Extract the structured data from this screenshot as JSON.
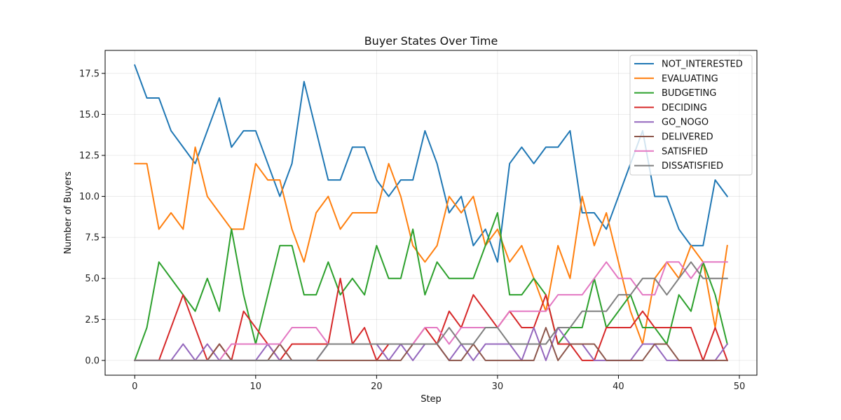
{
  "chart_data": {
    "type": "line",
    "title": "Buyer States Over Time",
    "xlabel": "Step",
    "ylabel": "Number of Buyers",
    "xlim": [
      -2.45,
      51.45
    ],
    "ylim": [
      -0.9,
      18.9
    ],
    "xticks": [
      0,
      10,
      20,
      30,
      40,
      50
    ],
    "yticks": [
      0.0,
      2.5,
      5.0,
      7.5,
      10.0,
      12.5,
      15.0,
      17.5
    ],
    "ytick_labels": [
      "0.0",
      "2.5",
      "5.0",
      "7.5",
      "10.0",
      "12.5",
      "15.0",
      "17.5"
    ],
    "grid": true,
    "legend_position": "top-right",
    "x": [
      0,
      1,
      2,
      3,
      4,
      5,
      6,
      7,
      8,
      9,
      10,
      11,
      12,
      13,
      14,
      15,
      16,
      17,
      18,
      19,
      20,
      21,
      22,
      23,
      24,
      25,
      26,
      27,
      28,
      29,
      30,
      31,
      32,
      33,
      34,
      35,
      36,
      37,
      38,
      39,
      40,
      41,
      42,
      43,
      44,
      45,
      46,
      47,
      48,
      49
    ],
    "series": [
      {
        "name": "NOT_INTERESTED",
        "color": "#1f77b4",
        "values": [
          18,
          16,
          16,
          14,
          13,
          12,
          14,
          16,
          13,
          14,
          14,
          12,
          10,
          12,
          17,
          14,
          11,
          11,
          13,
          13,
          11,
          10,
          11,
          11,
          14,
          12,
          9,
          10,
          7,
          8,
          6,
          12,
          13,
          12,
          13,
          13,
          14,
          9,
          9,
          8,
          10,
          12,
          14,
          10,
          10,
          8,
          7,
          7,
          11,
          10
        ]
      },
      {
        "name": "EVALUATING",
        "color": "#ff7f0e",
        "values": [
          12,
          12,
          8,
          9,
          8,
          13,
          10,
          9,
          8,
          8,
          12,
          11,
          11,
          8,
          6,
          9,
          10,
          8,
          9,
          9,
          9,
          12,
          10,
          7,
          6,
          7,
          10,
          9,
          10,
          7,
          8,
          6,
          7,
          5,
          3,
          7,
          5,
          10,
          7,
          9,
          6,
          3,
          1,
          5,
          6,
          5,
          7,
          6,
          2,
          7
        ]
      },
      {
        "name": "BUDGETING",
        "color": "#2ca02c",
        "values": [
          0,
          2,
          6,
          5,
          4,
          3,
          5,
          3,
          8,
          4,
          1,
          4,
          7,
          7,
          4,
          4,
          6,
          4,
          5,
          4,
          7,
          5,
          5,
          8,
          4,
          6,
          5,
          5,
          5,
          7,
          9,
          4,
          4,
          5,
          4,
          1,
          2,
          2,
          5,
          2,
          3,
          4,
          2,
          2,
          1,
          4,
          3,
          6,
          4,
          1
        ]
      },
      {
        "name": "DECIDING",
        "color": "#d62728",
        "values": [
          0,
          0,
          0,
          2,
          4,
          2,
          0,
          1,
          0,
          3,
          2,
          1,
          0,
          1,
          1,
          1,
          1,
          5,
          1,
          2,
          0,
          1,
          1,
          1,
          2,
          1,
          3,
          2,
          4,
          3,
          2,
          3,
          2,
          2,
          4,
          1,
          1,
          0,
          0,
          2,
          2,
          2,
          3,
          2,
          2,
          2,
          2,
          0,
          2,
          0
        ]
      },
      {
        "name": "GO_NOGO",
        "color": "#9467bd",
        "values": [
          0,
          0,
          0,
          0,
          1,
          0,
          1,
          0,
          0,
          0,
          0,
          1,
          0,
          0,
          0,
          0,
          1,
          1,
          1,
          1,
          1,
          0,
          1,
          0,
          1,
          1,
          0,
          1,
          0,
          1,
          1,
          1,
          0,
          2,
          0,
          2,
          1,
          1,
          0,
          0,
          0,
          0,
          1,
          1,
          0,
          0,
          0,
          0,
          0,
          1
        ]
      },
      {
        "name": "DELIVERED",
        "color": "#8c564b",
        "values": [
          0,
          0,
          0,
          0,
          0,
          0,
          0,
          1,
          0,
          0,
          0,
          0,
          1,
          0,
          0,
          0,
          0,
          0,
          0,
          0,
          0,
          0,
          0,
          1,
          1,
          1,
          0,
          0,
          1,
          0,
          0,
          0,
          0,
          0,
          2,
          0,
          1,
          1,
          1,
          0,
          0,
          0,
          0,
          1,
          1,
          0,
          0,
          0,
          0,
          0
        ]
      },
      {
        "name": "SATISFIED",
        "color": "#e377c2",
        "values": [
          0,
          0,
          0,
          0,
          0,
          0,
          0,
          0,
          1,
          1,
          1,
          1,
          1,
          2,
          2,
          2,
          1,
          1,
          1,
          1,
          1,
          1,
          1,
          1,
          2,
          2,
          1,
          2,
          2,
          2,
          2,
          3,
          3,
          3,
          3,
          4,
          4,
          4,
          5,
          6,
          5,
          5,
          4,
          4,
          6,
          6,
          5,
          6,
          6,
          6
        ]
      },
      {
        "name": "DISSATISFIED",
        "color": "#7f7f7f",
        "values": [
          0,
          0,
          0,
          0,
          0,
          0,
          0,
          0,
          0,
          0,
          0,
          0,
          0,
          0,
          0,
          0,
          1,
          1,
          1,
          1,
          1,
          1,
          1,
          1,
          1,
          1,
          2,
          1,
          1,
          2,
          2,
          1,
          1,
          1,
          1,
          2,
          2,
          3,
          3,
          3,
          4,
          4,
          5,
          5,
          4,
          5,
          6,
          5,
          5,
          5
        ]
      }
    ]
  }
}
